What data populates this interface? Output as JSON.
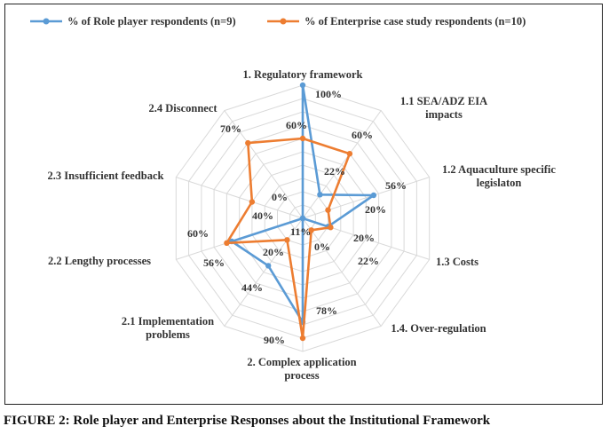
{
  "chart_data": {
    "type": "radar",
    "axes": [
      [
        "1. Regulatory framework"
      ],
      [
        "1.1  SEA/ADZ EIA",
        "impacts"
      ],
      [
        "1.2 Aquaculture specific",
        "legislaton"
      ],
      [
        "1.3 Costs"
      ],
      [
        "1.4. Over-regulation"
      ],
      [
        "2. Complex application",
        "process"
      ],
      [
        "2.1 Implementation",
        "problems"
      ],
      [
        "2.2 Lengthy processes"
      ],
      [
        "2.3 Insufficient feedback"
      ],
      [
        "2.4 Disconnect"
      ]
    ],
    "series": [
      {
        "name": "% of Role player respondents (n=9)",
        "color": "#5b9bd5",
        "values": [
          100,
          22,
          56,
          20,
          0,
          78,
          44,
          56,
          0,
          0
        ],
        "labels": [
          "100%",
          "22%",
          "56%",
          "20%",
          "0%",
          "78%",
          "44%",
          "56%",
          "0%",
          "0%"
        ]
      },
      {
        "name": "% of Enterprise case study respondents (n=10)",
        "color": "#ed7d31",
        "values": [
          60,
          60,
          20,
          22,
          11,
          90,
          20,
          60,
          40,
          70
        ],
        "labels": [
          "60%",
          "60%",
          "20%",
          "22%",
          "11%",
          "90%",
          "20%",
          "60%",
          "40%",
          "70%"
        ]
      }
    ],
    "rmax": 100,
    "rings": 10,
    "legend_position": "top",
    "caption": "FIGURE 2: Role player and Enterprise Responses about the Institutional Framework"
  }
}
